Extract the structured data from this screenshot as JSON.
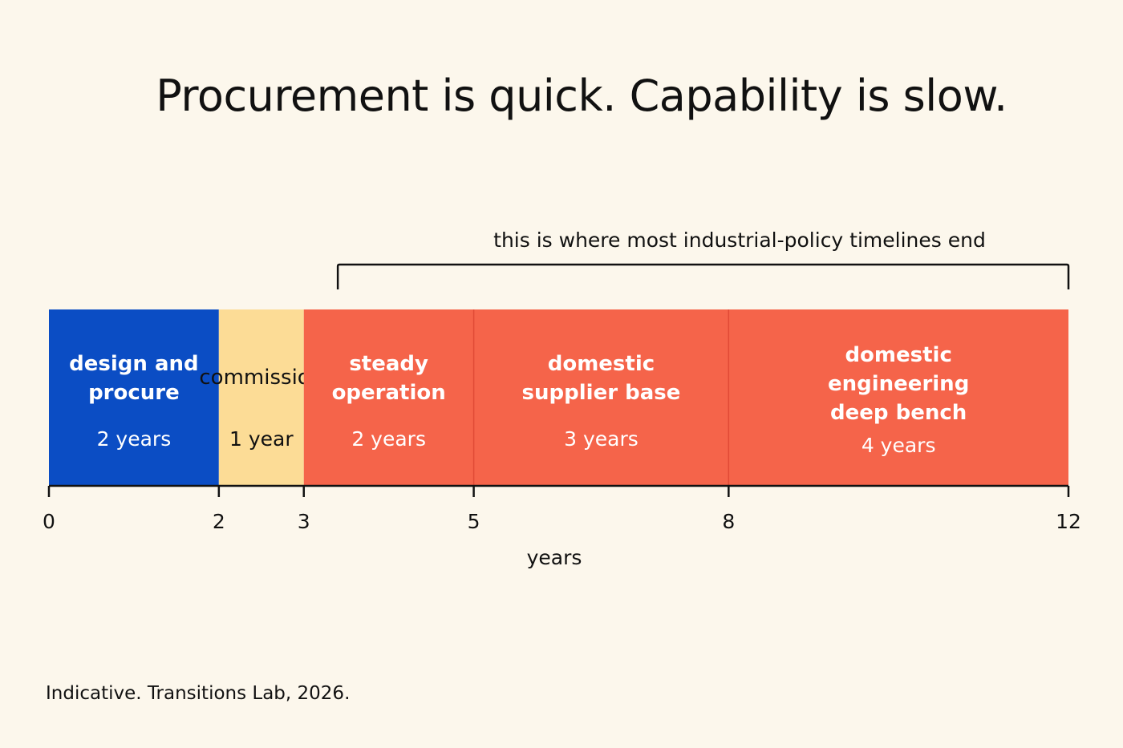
{
  "title": "Procurement is quick. Capability is slow.",
  "source": "Indicative. Transitions Lab, 2026.",
  "chart_data": {
    "type": "bar",
    "orientation": "horizontal-stacked-timeline",
    "title": "Procurement is quick. Capability is slow.",
    "xlabel": "years",
    "xlim": [
      0,
      12
    ],
    "x_ticks": [
      0,
      2,
      3,
      5,
      8,
      12
    ],
    "segments": [
      {
        "label": [
          "design and",
          "procure"
        ],
        "duration_label": "2 years",
        "start": 0,
        "end": 2,
        "duration": 2,
        "color": "#0b4dc4",
        "text_color": "#ffffff"
      },
      {
        "label": [
          "commission"
        ],
        "duration_label": "1 year",
        "start": 2,
        "end": 3,
        "duration": 1,
        "color": "#fcdc96",
        "text_color": "#111111"
      },
      {
        "label": [
          "steady",
          "operation"
        ],
        "duration_label": "2 years",
        "start": 3,
        "end": 5,
        "duration": 2,
        "color": "#f5644a",
        "text_color": "#ffffff"
      },
      {
        "label": [
          "domestic",
          "supplier base"
        ],
        "duration_label": "3 years",
        "start": 5,
        "end": 8,
        "duration": 3,
        "color": "#f5644a",
        "text_color": "#ffffff"
      },
      {
        "label": [
          "domestic",
          "engineering",
          "deep bench"
        ],
        "duration_label": "4 years",
        "start": 8,
        "end": 12,
        "duration": 4,
        "color": "#f5644a",
        "text_color": "#ffffff"
      }
    ],
    "annotation": {
      "text": "this is where most industrial-policy timelines end",
      "start": 3.4,
      "end": 12
    },
    "grid": false,
    "legend": "none"
  }
}
